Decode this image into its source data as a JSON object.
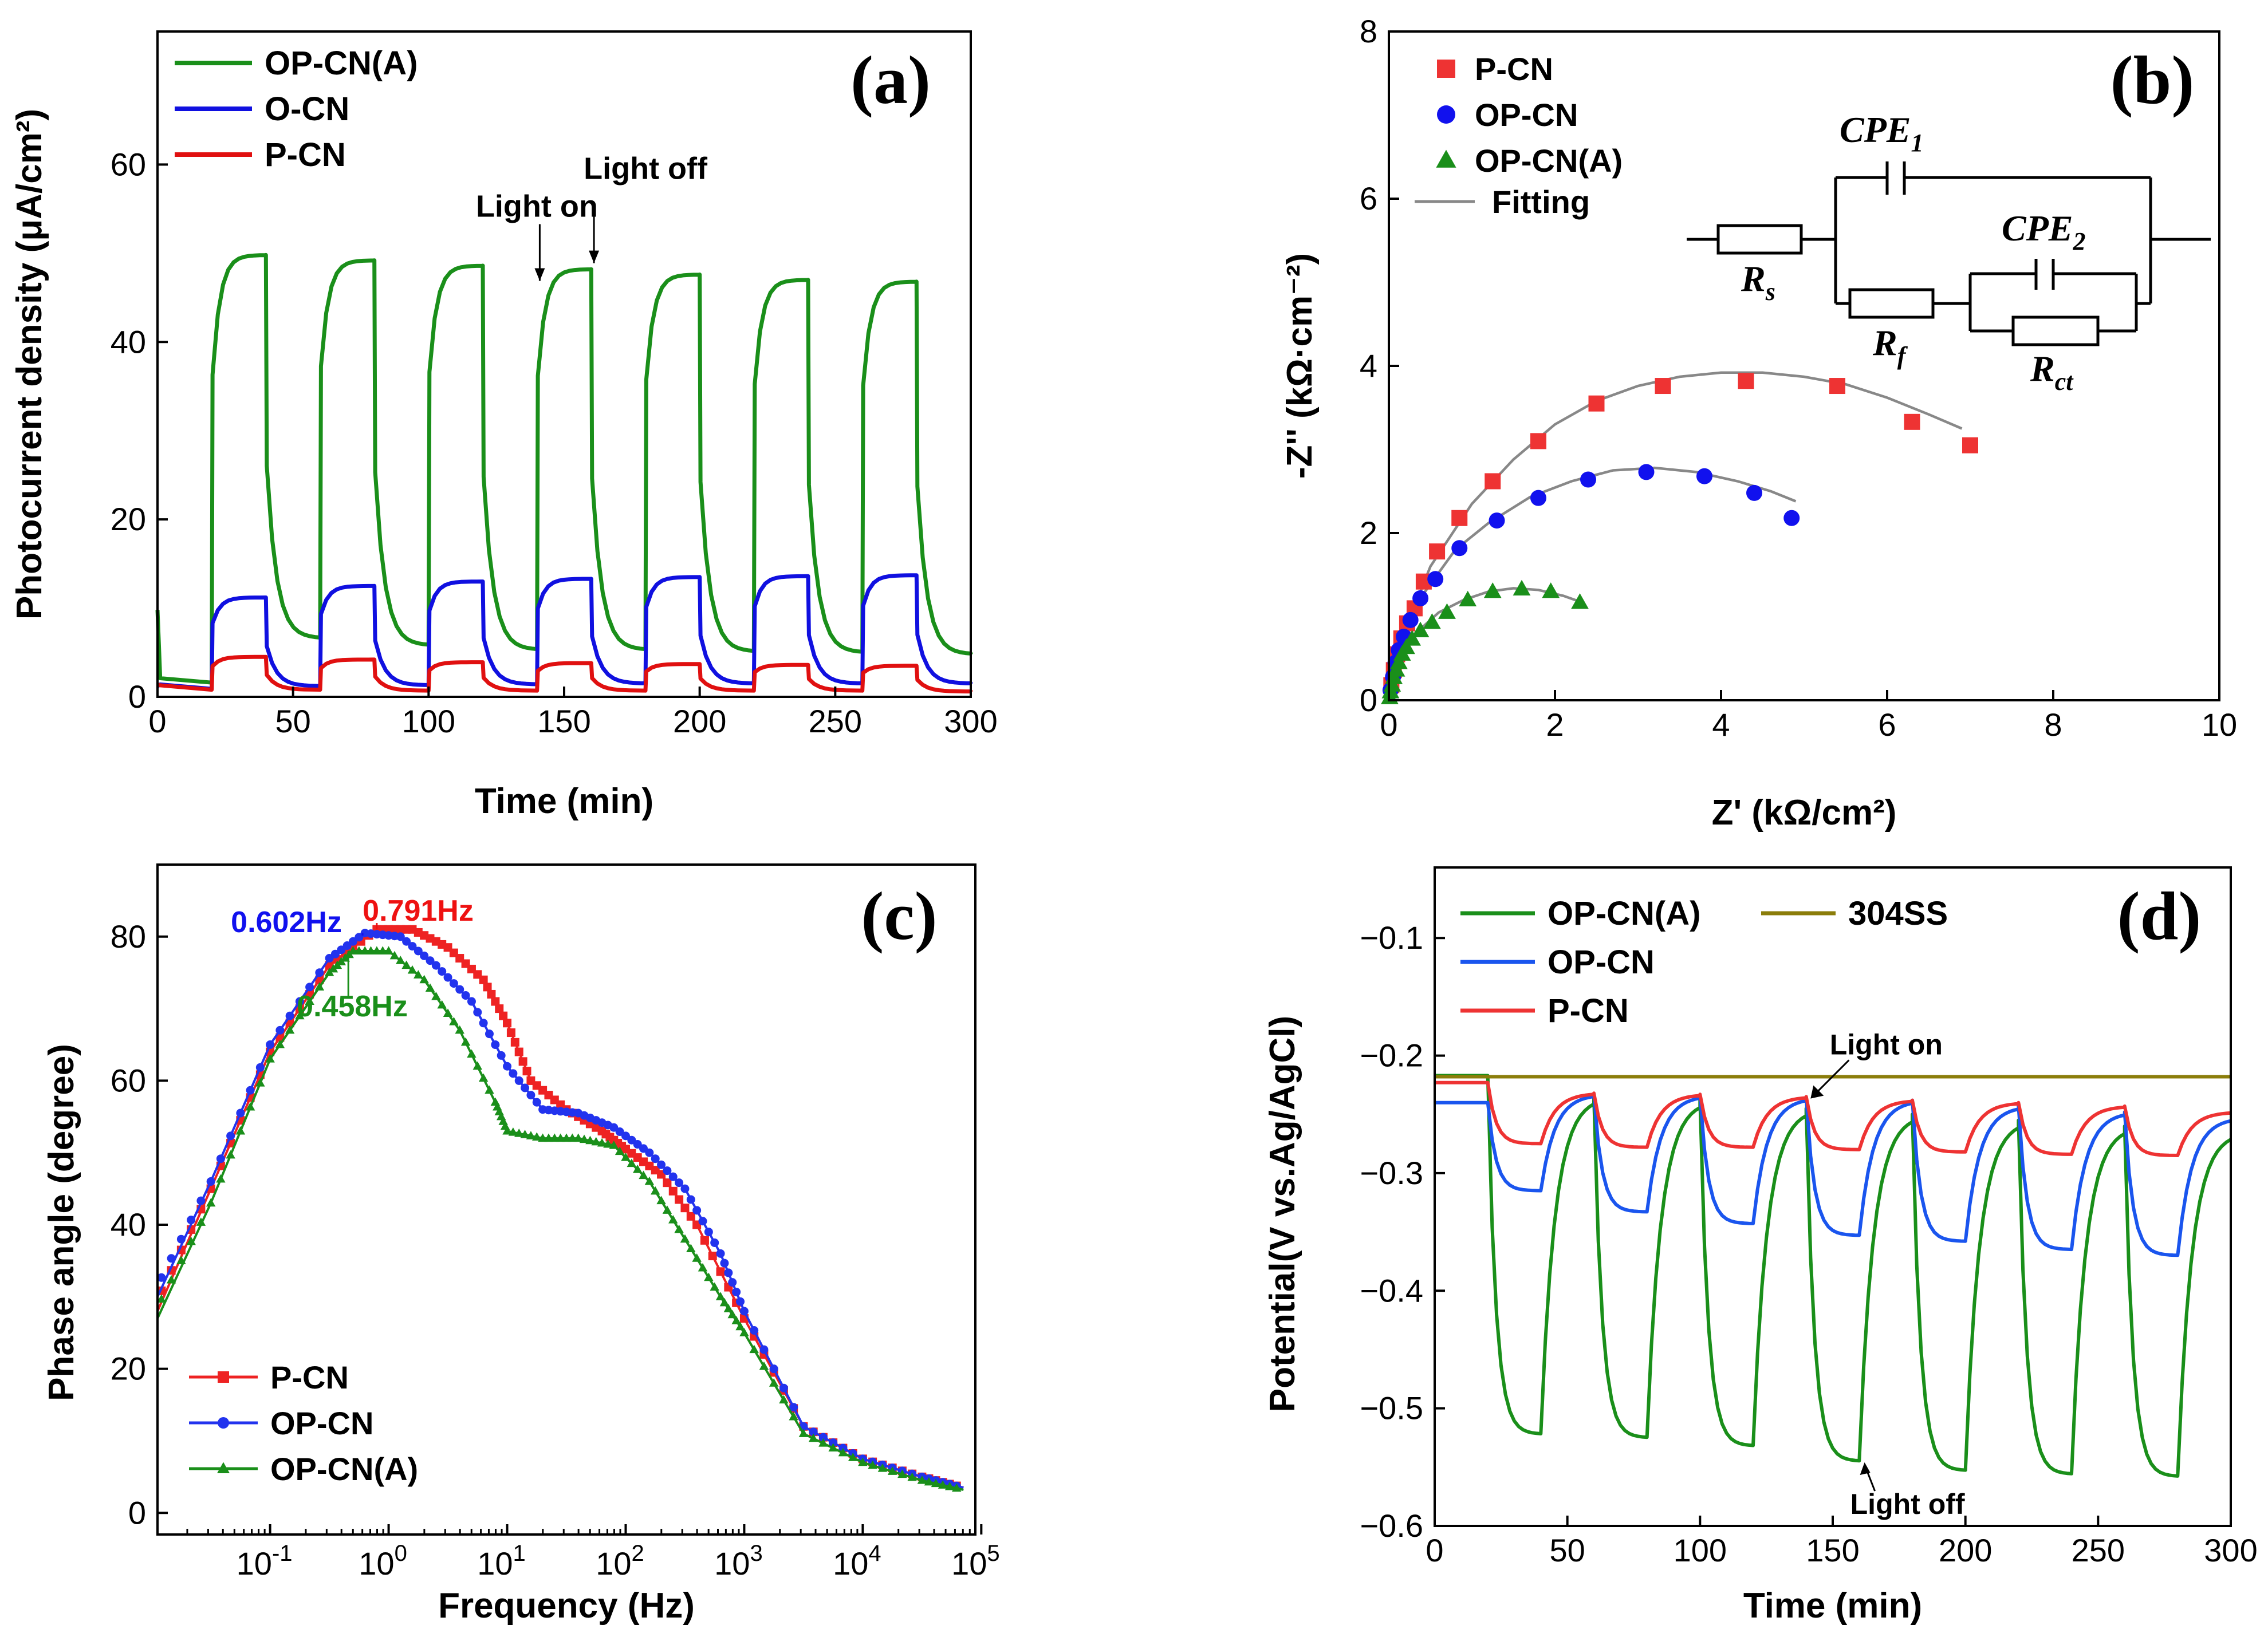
{
  "chart_data": [
    {
      "id": "a",
      "type": "line",
      "panel_label": "(a)",
      "xlabel": "Time (min)",
      "ylabel": "Photocurrent density (μA/cm²)",
      "xlim": [
        0,
        300
      ],
      "ylim": [
        0,
        75
      ],
      "xticks": [
        0,
        50,
        100,
        150,
        200,
        250,
        300
      ],
      "yticks": [
        0,
        20,
        40,
        60
      ],
      "light_cycles": {
        "first_on": 20,
        "on_duration": 20,
        "period": 40,
        "count": 7
      },
      "series": [
        {
          "name": "OP-CN(A)",
          "color": "#1a8f1a",
          "dark_start": 9.8,
          "dark_base": 1.6,
          "on_peaks": [
            49.8,
            49.2,
            48.6,
            48.2,
            47.6,
            47.0,
            46.8
          ],
          "off_valleys": [
            1.6,
            6.6,
            5.8,
            5.3,
            5.3,
            5.1,
            5.0,
            4.8
          ]
        },
        {
          "name": "O-CN",
          "color": "#1010e0",
          "dark_start": 1.2,
          "dark_base": 0.9,
          "on_peaks": [
            11.2,
            12.5,
            13.0,
            13.3,
            13.5,
            13.6,
            13.7
          ],
          "off_valleys": [
            0.9,
            1.2,
            1.3,
            1.4,
            1.5,
            1.5,
            1.5,
            1.5
          ]
        },
        {
          "name": "P-CN",
          "color": "#e01010",
          "dark_start": 1.4,
          "dark_base": 0.8,
          "on_peaks": [
            4.5,
            4.2,
            3.9,
            3.8,
            3.7,
            3.6,
            3.5
          ],
          "off_valleys": [
            0.8,
            0.8,
            0.7,
            0.7,
            0.7,
            0.7,
            0.7,
            0.6
          ]
        }
      ],
      "annotations": [
        {
          "text": "Light on",
          "x": 141,
          "y": 46.5
        },
        {
          "text": "Light off",
          "x": 161,
          "y": 48.5
        }
      ]
    },
    {
      "id": "b",
      "type": "scatter",
      "panel_label": "(b)",
      "xlabel": "Z' (kΩ/cm²)",
      "ylabel": "-Z'' (kΩ·cm⁻²)",
      "xlim": [
        0,
        10
      ],
      "ylim": [
        0,
        8
      ],
      "xticks": [
        0,
        2,
        4,
        6,
        8,
        10
      ],
      "yticks": [
        0,
        2,
        4,
        6,
        8
      ],
      "series": [
        {
          "name": "P-CN",
          "marker": "square",
          "color": "#ee3333",
          "x": [
            0.03,
            0.06,
            0.1,
            0.15,
            0.22,
            0.31,
            0.42,
            0.58,
            0.85,
            1.25,
            1.8,
            2.5,
            3.3,
            4.3,
            5.4,
            6.3,
            7.0
          ],
          "y": [
            0.18,
            0.36,
            0.55,
            0.74,
            0.92,
            1.1,
            1.42,
            1.78,
            2.18,
            2.62,
            3.1,
            3.55,
            3.76,
            3.82,
            3.76,
            3.33,
            3.05
          ]
        },
        {
          "name": "OP-CN",
          "marker": "circle",
          "color": "#1111ee",
          "x": [
            0.02,
            0.05,
            0.08,
            0.12,
            0.18,
            0.26,
            0.38,
            0.56,
            0.85,
            1.3,
            1.8,
            2.4,
            3.1,
            3.8,
            4.4,
            4.85
          ],
          "y": [
            0.12,
            0.28,
            0.45,
            0.6,
            0.76,
            0.96,
            1.22,
            1.45,
            1.82,
            2.15,
            2.42,
            2.64,
            2.73,
            2.68,
            2.48,
            2.18
          ]
        },
        {
          "name": "OP-CN(A)",
          "marker": "triangle",
          "color": "#1a8f1a",
          "x": [
            0.01,
            0.02,
            0.04,
            0.06,
            0.09,
            0.12,
            0.16,
            0.21,
            0.28,
            0.38,
            0.52,
            0.7,
            0.95,
            1.25,
            1.6,
            1.95,
            2.3
          ],
          "y": [
            0.03,
            0.1,
            0.18,
            0.27,
            0.36,
            0.45,
            0.55,
            0.63,
            0.73,
            0.83,
            0.93,
            1.05,
            1.2,
            1.3,
            1.33,
            1.3,
            1.17
          ]
        }
      ],
      "fits": [
        {
          "name": "P-CN",
          "x": [
            0,
            0.2,
            0.5,
            1,
            1.5,
            2,
            2.5,
            3,
            3.5,
            4,
            4.5,
            5,
            5.5,
            6,
            6.5,
            6.9
          ],
          "y": [
            0,
            0.85,
            1.6,
            2.35,
            2.88,
            3.3,
            3.58,
            3.76,
            3.87,
            3.92,
            3.92,
            3.87,
            3.78,
            3.62,
            3.42,
            3.25
          ]
        },
        {
          "name": "OP-CN",
          "x": [
            0,
            0.15,
            0.4,
            0.8,
            1.2,
            1.7,
            2.2,
            2.7,
            3.2,
            3.7,
            4.2,
            4.6,
            4.9
          ],
          "y": [
            0,
            0.65,
            1.25,
            1.8,
            2.12,
            2.43,
            2.62,
            2.75,
            2.78,
            2.73,
            2.62,
            2.5,
            2.38
          ]
        },
        {
          "name": "OP-CN(A)",
          "x": [
            0,
            0.1,
            0.3,
            0.6,
            0.9,
            1.2,
            1.5,
            1.8,
            2.1,
            2.3
          ],
          "y": [
            0,
            0.42,
            0.78,
            1.05,
            1.2,
            1.3,
            1.34,
            1.32,
            1.25,
            1.18
          ]
        }
      ],
      "legend": [
        "P-CN",
        "OP-CN",
        "OP-CN(A)",
        "Fitting"
      ],
      "circuit": {
        "cpe1": "CPE",
        "cpe1_sub": "1",
        "cpe2": "CPE",
        "cpe2_sub": "2",
        "rs": "R",
        "rs_sub": "s",
        "rf": "R",
        "rf_sub": "f",
        "rct": "R",
        "rct_sub": "ct"
      }
    },
    {
      "id": "c",
      "type": "line",
      "panel_label": "(c)",
      "xlabel": "Frequency (Hz)",
      "ylabel": "Phase angle (degree)",
      "xscale": "log",
      "xlim_log10": [
        -1.95,
        4.95
      ],
      "ylim": [
        -3,
        90
      ],
      "xtick_exponents": [
        -1,
        0,
        1,
        2,
        3,
        4,
        5
      ],
      "yticks": [
        0,
        20,
        40,
        60,
        80
      ],
      "series": [
        {
          "name": "P-CN",
          "marker": "square",
          "color": "#ee2222",
          "logf": [
            -2,
            -1.5,
            -1,
            -0.5,
            -0.1,
            0.2,
            0.5,
            0.8,
            1.0,
            1.2,
            1.5,
            1.8,
            2.0,
            2.3,
            2.6,
            3.0,
            3.5,
            4.0,
            4.5,
            4.85
          ],
          "y": [
            28,
            45,
            64,
            76,
            81,
            81,
            78.5,
            74,
            68,
            60,
            56,
            53,
            50.5,
            47,
            40,
            27,
            12,
            7.5,
            5,
            3.5
          ]
        },
        {
          "name": "OP-CN",
          "marker": "circle",
          "color": "#2233ee",
          "logf": [
            -2,
            -1.5,
            -1,
            -0.5,
            -0.2,
            0.1,
            0.4,
            0.7,
            1.0,
            1.3,
            1.6,
            1.9,
            2.2,
            2.5,
            2.8,
            3.0,
            3.5,
            4.0,
            4.5,
            4.85
          ],
          "y": [
            30,
            46,
            65,
            77,
            80.5,
            80,
            76,
            71,
            62,
            56,
            55.5,
            53.5,
            50,
            45,
            36,
            28,
            12,
            7.5,
            5,
            3.5
          ]
        },
        {
          "name": "OP-CN(A)",
          "marker": "triangle",
          "color": "#1a8f1a",
          "logf": [
            -2,
            -1.5,
            -1,
            -0.5,
            -0.3,
            0.0,
            0.3,
            0.6,
            0.9,
            1.0,
            1.3,
            1.6,
            1.9,
            2.2,
            2.5,
            2.8,
            3.0,
            3.5,
            4.0,
            4.5,
            4.85
          ],
          "y": [
            27,
            43,
            63,
            75,
            78,
            78,
            74,
            67,
            57,
            53,
            52,
            52,
            51,
            46,
            38,
            30,
            25,
            11,
            7,
            4.5,
            3.2
          ]
        }
      ],
      "annotations": [
        {
          "text": "0.602Hz",
          "color": "#1111ee",
          "logf": -0.22,
          "y": 80.5
        },
        {
          "text": "0.791Hz",
          "color": "#ee1111",
          "logf": -0.1,
          "y": 81
        },
        {
          "text": "0.458Hz",
          "color": "#1a8f1a",
          "logf": -0.34,
          "y": 78
        }
      ]
    },
    {
      "id": "d",
      "type": "line",
      "panel_label": "(d)",
      "xlabel": "Time (min)",
      "ylabel": "Potential(V vs.Ag/AgCl)",
      "xlim": [
        0,
        300
      ],
      "ylim": [
        -0.6,
        -0.04
      ],
      "xticks": [
        0,
        50,
        100,
        150,
        200,
        250,
        300
      ],
      "yticks": [
        -0.6,
        -0.5,
        -0.4,
        -0.3,
        -0.2,
        -0.1
      ],
      "light_cycles": {
        "first_on": 20,
        "on_duration": 20,
        "period": 40,
        "count": 7
      },
      "series": [
        {
          "name": "OP-CN(A)",
          "color": "#1a8f1a",
          "dark_level": -0.217,
          "recover_levels": [
            -0.235,
            -0.238,
            -0.245,
            -0.25,
            -0.255,
            -0.26
          ],
          "on_minima": [
            -0.522,
            -0.525,
            -0.532,
            -0.545,
            -0.553,
            -0.556,
            -0.558
          ]
        },
        {
          "name": "304SS",
          "color": "#8b7d0a",
          "flat": -0.218
        },
        {
          "name": "OP-CN",
          "color": "#1a55ee",
          "dark_level": -0.24,
          "recover_levels": [
            -0.233,
            -0.234,
            -0.236,
            -0.238,
            -0.243,
            -0.248
          ],
          "on_minima": [
            -0.315,
            -0.333,
            -0.343,
            -0.353,
            -0.358,
            -0.365,
            -0.37
          ]
        },
        {
          "name": "P-CN",
          "color": "#ee3333",
          "dark_level": -0.223,
          "recover_levels": [
            -0.232,
            -0.233,
            -0.235,
            -0.238,
            -0.24,
            -0.243
          ],
          "on_minima": [
            -0.275,
            -0.278,
            -0.278,
            -0.28,
            -0.282,
            -0.284,
            -0.285
          ]
        }
      ],
      "annotations": [
        {
          "text": "Light on",
          "x": 141,
          "y": -0.238
        },
        {
          "text": "Light off",
          "x": 162,
          "y": -0.545
        }
      ]
    }
  ]
}
